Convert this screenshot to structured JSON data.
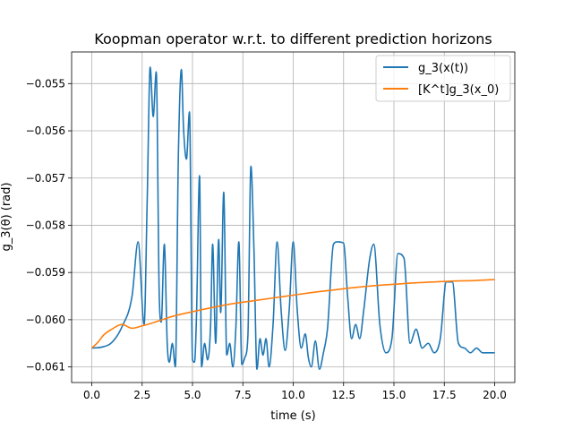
{
  "chart_data": {
    "type": "line",
    "title": "Koopman operator w.r.t. to different prediction horizons",
    "xlabel": "time (s)",
    "ylabel": "g_3(θ) (rad)",
    "xlim": [
      -1.0,
      21.0
    ],
    "ylim": [
      -0.06133,
      -0.05433
    ],
    "xticks": [
      0.0,
      2.5,
      5.0,
      7.5,
      10.0,
      12.5,
      15.0,
      17.5,
      20.0
    ],
    "xtick_labels": [
      "0.0",
      "2.5",
      "5.0",
      "7.5",
      "10.0",
      "12.5",
      "15.0",
      "17.5",
      "20.0"
    ],
    "yticks": [
      -0.055,
      -0.056,
      -0.057,
      -0.058,
      -0.059,
      -0.06,
      -0.061
    ],
    "ytick_labels": [
      "−0.055",
      "−0.056",
      "−0.057",
      "−0.058",
      "−0.059",
      "−0.060",
      "−0.061"
    ],
    "grid": true,
    "legend_position": "top-right",
    "series": [
      {
        "name": "g_3(x(t))",
        "color": "#1f77b4",
        "x": [
          0.0,
          0.5,
          1.0,
          1.5,
          2.0,
          2.3,
          2.6,
          2.75,
          2.9,
          3.05,
          3.2,
          3.35,
          3.45,
          3.6,
          3.75,
          3.85,
          4.0,
          4.15,
          4.3,
          4.45,
          4.55,
          4.7,
          4.85,
          5.0,
          5.1,
          5.2,
          5.35,
          5.45,
          5.6,
          5.75,
          5.9,
          6.0,
          6.15,
          6.3,
          6.4,
          6.55,
          6.7,
          6.85,
          7.0,
          7.15,
          7.3,
          7.45,
          7.6,
          7.75,
          7.9,
          8.05,
          8.2,
          8.35,
          8.5,
          8.65,
          8.8,
          9.0,
          9.2,
          9.4,
          9.6,
          9.8,
          10.0,
          10.2,
          10.4,
          10.6,
          10.75,
          10.9,
          11.1,
          11.3,
          11.5,
          11.7,
          12.0,
          12.2,
          12.5,
          12.7,
          12.9,
          13.1,
          13.3,
          13.5,
          13.8,
          14.0,
          14.3,
          14.6,
          14.9,
          15.2,
          15.5,
          15.8,
          16.1,
          16.4,
          16.7,
          17.0,
          17.3,
          17.6,
          17.9,
          18.2,
          18.5,
          18.8,
          19.1,
          19.4,
          19.7,
          20.0
        ],
        "y": [
          -0.0606,
          -0.06058,
          -0.06048,
          -0.06015,
          -0.0595,
          -0.05835,
          -0.0601,
          -0.0575,
          -0.05465,
          -0.0557,
          -0.05475,
          -0.0595,
          -0.06005,
          -0.0584,
          -0.06055,
          -0.0609,
          -0.0605,
          -0.061,
          -0.0565,
          -0.0547,
          -0.0559,
          -0.0566,
          -0.0556,
          -0.06085,
          -0.0609,
          -0.0599,
          -0.05695,
          -0.061,
          -0.0605,
          -0.06085,
          -0.0601,
          -0.0584,
          -0.0605,
          -0.0583,
          -0.05985,
          -0.0573,
          -0.06075,
          -0.0605,
          -0.061,
          -0.0602,
          -0.05835,
          -0.06095,
          -0.0608,
          -0.06035,
          -0.05675,
          -0.0585,
          -0.06105,
          -0.0604,
          -0.06075,
          -0.0604,
          -0.061,
          -0.0601,
          -0.05835,
          -0.0598,
          -0.06065,
          -0.0598,
          -0.05835,
          -0.0598,
          -0.0606,
          -0.0603,
          -0.0608,
          -0.061,
          -0.06045,
          -0.06105,
          -0.0607,
          -0.0602,
          -0.0584,
          -0.05835,
          -0.05838,
          -0.0595,
          -0.0604,
          -0.0601,
          -0.0604,
          -0.0598,
          -0.0587,
          -0.0584,
          -0.0601,
          -0.0607,
          -0.0604,
          -0.0586,
          -0.0587,
          -0.0605,
          -0.0602,
          -0.0606,
          -0.0605,
          -0.0607,
          -0.0604,
          -0.0592,
          -0.0592,
          -0.0605,
          -0.0606,
          -0.0607,
          -0.0606,
          -0.0607,
          -0.0607,
          -0.0607
        ]
      },
      {
        "name": "[K^t]g_3(x_0)",
        "color": "#ff7f0e",
        "x": [
          0.0,
          0.3,
          0.6,
          1.0,
          1.5,
          2.0,
          2.5,
          3.0,
          3.5,
          4.0,
          5.0,
          6.0,
          7.0,
          8.0,
          9.0,
          10.0,
          11.0,
          12.0,
          13.0,
          14.0,
          15.0,
          16.0,
          17.0,
          18.0,
          19.0,
          20.0
        ],
        "y": [
          -0.0606,
          -0.06048,
          -0.06032,
          -0.0602,
          -0.0601,
          -0.06018,
          -0.06013,
          -0.06007,
          -0.06,
          -0.05993,
          -0.05983,
          -0.05974,
          -0.05966,
          -0.0596,
          -0.05954,
          -0.05948,
          -0.05942,
          -0.05937,
          -0.05932,
          -0.05928,
          -0.05925,
          -0.05922,
          -0.0592,
          -0.05918,
          -0.05917,
          -0.05915
        ]
      }
    ]
  }
}
